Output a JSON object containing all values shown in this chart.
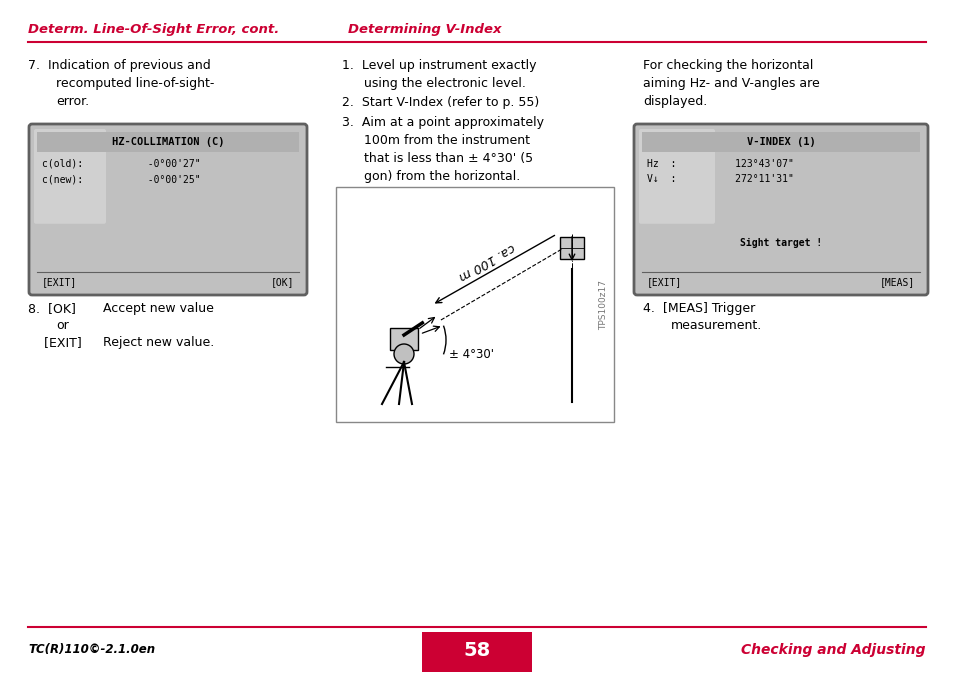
{
  "title_left": "Determ. Line-Of-Sight Error, cont.",
  "title_right": "Determining V-Index",
  "title_color": "#cc0033",
  "bg_color": "#ffffff",
  "footer_left": "TC(R)110©-2.1.0en",
  "footer_page": "58",
  "footer_right": "Checking and Adjusting",
  "footer_bg": "#cc0033",
  "screen1_title": "HZ-COLLIMATION (C)",
  "screen1_line1": "c(old):           -0°00'27\"",
  "screen1_line2": "c(new):           -0°00'25\"",
  "screen1_fl": "[EXIT]",
  "screen1_fr": "[OK]",
  "screen2_title": "V-INDEX (1)",
  "screen2_line1": "Hz  :          123°43'07\"",
  "screen2_line2": "V↓  :          272°11'31\"",
  "screen2_mid": "Sight target !",
  "screen2_fl": "[EXIT]",
  "screen2_fr": "[MEAS]",
  "diagram_label": "ca. 100 m",
  "diagram_angle": "± 4°30'",
  "diagram_watermark": "TPS100z17"
}
